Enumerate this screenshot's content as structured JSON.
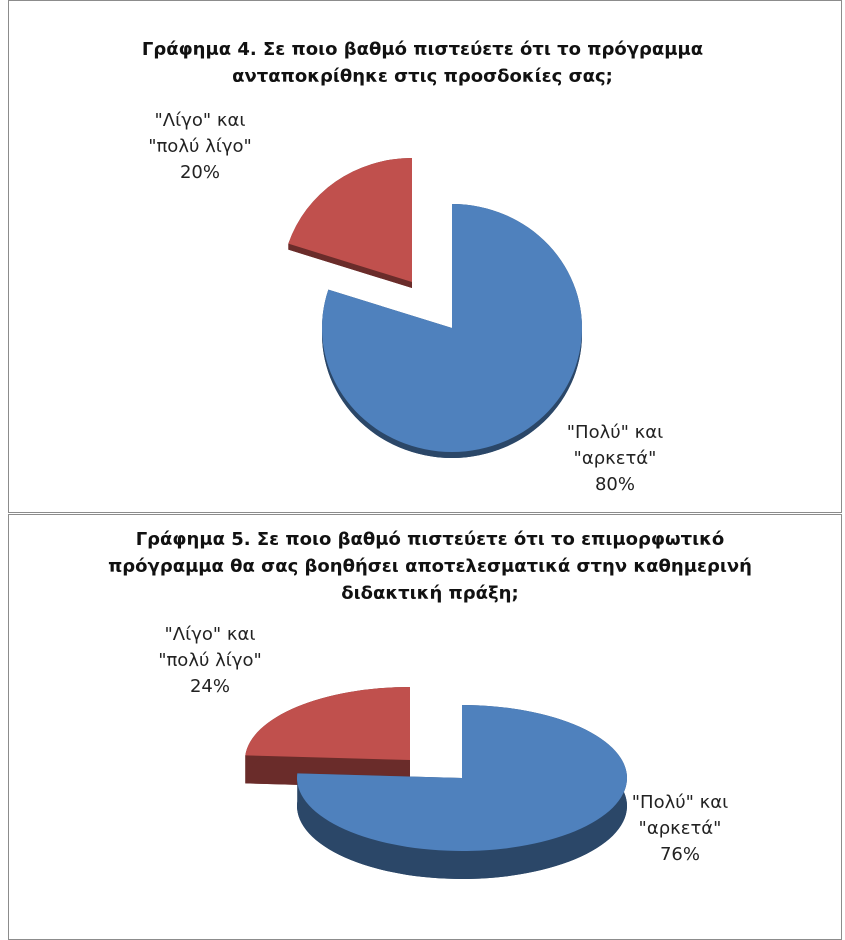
{
  "chart_data": [
    {
      "type": "pie",
      "title": "Γράφημα 4. Σε ποιο βαθμό πιστεύετε ότι το πρόγραμμα ανταποκρίθηκε στις προσδοκίες σας;",
      "categories": [
        "\"Πολύ\" και \"αρκετά\"",
        "\"Λίγο\" και \"πολύ λίγο\""
      ],
      "values": [
        80,
        20
      ],
      "value_labels": [
        "80%",
        "20%"
      ],
      "colors": [
        "#4f81bd",
        "#c0504d"
      ]
    },
    {
      "type": "pie",
      "title": "Γράφημα 5. Σε ποιο βαθμό πιστεύετε ότι το επιμορφωτικό πρόγραμμα θα σας βοηθήσει αποτελεσματικά στην καθημερινή διδακτική πράξη;",
      "categories": [
        "\"Πολύ\" και \"αρκετά\"",
        "\"Λίγο\" και \"πολύ λίγο\""
      ],
      "values": [
        76,
        24
      ],
      "value_labels": [
        "76%",
        "24%"
      ],
      "colors": [
        "#4f81bd",
        "#c0504d"
      ]
    }
  ]
}
